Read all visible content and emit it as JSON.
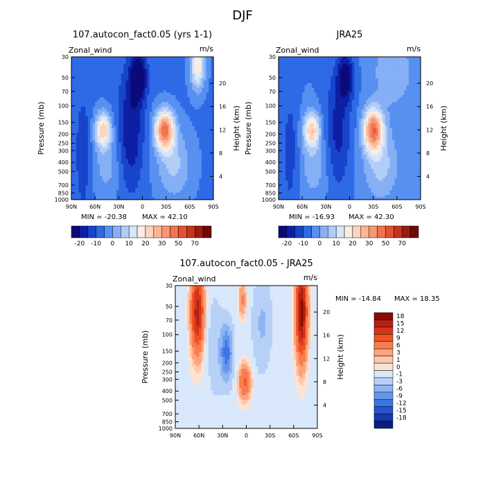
{
  "figure_title": "DJF",
  "chart_data": [
    {
      "type": "heatmap",
      "title": "107.autocon_fact0.05 (yrs 1-1)",
      "variable": "Zonal_wind",
      "units": "m/s",
      "xlabel": "",
      "ylabel": "Pressure (mb)",
      "y2label": "Height (km)",
      "x_ticks": [
        "90N",
        "60N",
        "30N",
        "0",
        "30S",
        "60S",
        "90S"
      ],
      "y_ticks": [
        "30",
        "50",
        "70",
        "100",
        "150",
        "200",
        "250",
        "300",
        "400",
        "500",
        "700",
        "850",
        "1000"
      ],
      "y2_ticks": [
        "20",
        "16",
        "12",
        "8",
        "4"
      ],
      "min_label": "MIN = -20.38",
      "max_label": "MAX = 42.10",
      "colorbar_labels": [
        "-20",
        "-10",
        "0",
        "10",
        "20",
        "30",
        "50",
        "70"
      ],
      "features": [
        {
          "lat": -28,
          "p": 190,
          "value": 42.1
        },
        {
          "lat": 52,
          "p": 200,
          "value": 30
        },
        {
          "lat": 2,
          "p": 35,
          "value": -20.38
        },
        {
          "lat": -72,
          "p": 60,
          "value": 25
        }
      ]
    },
    {
      "type": "heatmap",
      "title": "JRA25",
      "variable": "Zonal_wind",
      "units": "m/s",
      "xlabel": "",
      "ylabel": "Pressure (mb)",
      "y2label": "Height (km)",
      "x_ticks": [
        "90N",
        "60N",
        "30N",
        "0",
        "30S",
        "60S",
        "90S"
      ],
      "y_ticks": [
        "30",
        "50",
        "70",
        "100",
        "150",
        "200",
        "250",
        "300",
        "400",
        "500",
        "700",
        "850",
        "1000"
      ],
      "y2_ticks": [
        "20",
        "16",
        "12",
        "8",
        "4"
      ],
      "min_label": "MIN = -16.93",
      "max_label": "MAX = 42.30",
      "colorbar_labels": [
        "-20",
        "-10",
        "0",
        "10",
        "20",
        "30",
        "50",
        "70"
      ],
      "features": [
        {
          "lat": -30,
          "p": 190,
          "value": 42.3
        },
        {
          "lat": 50,
          "p": 210,
          "value": 30
        },
        {
          "lat": 5,
          "p": 35,
          "value": -16.93
        }
      ]
    },
    {
      "type": "heatmap",
      "title": "107.autocon_fact0.05 - JRA25",
      "variable": "Zonal_wind",
      "units": "m/s",
      "xlabel": "",
      "ylabel": "Pressure (mb)",
      "y2label": "Height (km)",
      "x_ticks": [
        "90N",
        "60N",
        "30N",
        "0",
        "30S",
        "60S",
        "90S"
      ],
      "y_ticks": [
        "30",
        "50",
        "70",
        "100",
        "150",
        "200",
        "250",
        "300",
        "400",
        "500",
        "700",
        "850",
        "1000"
      ],
      "y2_ticks": [
        "20",
        "16",
        "12",
        "8",
        "4"
      ],
      "min_label": "MIN = -14.84",
      "max_label": "MAX =  18.35",
      "colorbar_labels": [
        "18",
        "15",
        "12",
        "9",
        "6",
        "3",
        "1",
        "0",
        "-1",
        "-3",
        "-6",
        "-9",
        "-12",
        "-15",
        "-18"
      ],
      "features": [
        {
          "lat": -70,
          "p": 40,
          "value": 18.35
        },
        {
          "lat": 62,
          "p": 60,
          "value": 15
        },
        {
          "lat": 2,
          "p": 250,
          "value": 8
        },
        {
          "lat": 25,
          "p": 200,
          "value": -14.84
        }
      ]
    }
  ],
  "colors": {
    "full_scale": [
      "#0a0a7a",
      "#0d1fa3",
      "#1844cc",
      "#2e6ae6",
      "#5790f0",
      "#86b0f5",
      "#b2cdf8",
      "#d6e6fb",
      "#fbeee0",
      "#fdd4bd",
      "#fcb596",
      "#f89674",
      "#f17450",
      "#e3512f",
      "#c7331d",
      "#9c1b10",
      "#6e0a06"
    ],
    "diff_scale": [
      "#8b0c05",
      "#b52010",
      "#d7351a",
      "#ee5225",
      "#f77d4e",
      "#fba47d",
      "#fdc7ad",
      "#fde3d3",
      "#d9e8fb",
      "#b6d0f7",
      "#8db4f2",
      "#6396ed",
      "#3c76e6",
      "#2455cf",
      "#143aaf",
      "#0a1f7e"
    ]
  }
}
